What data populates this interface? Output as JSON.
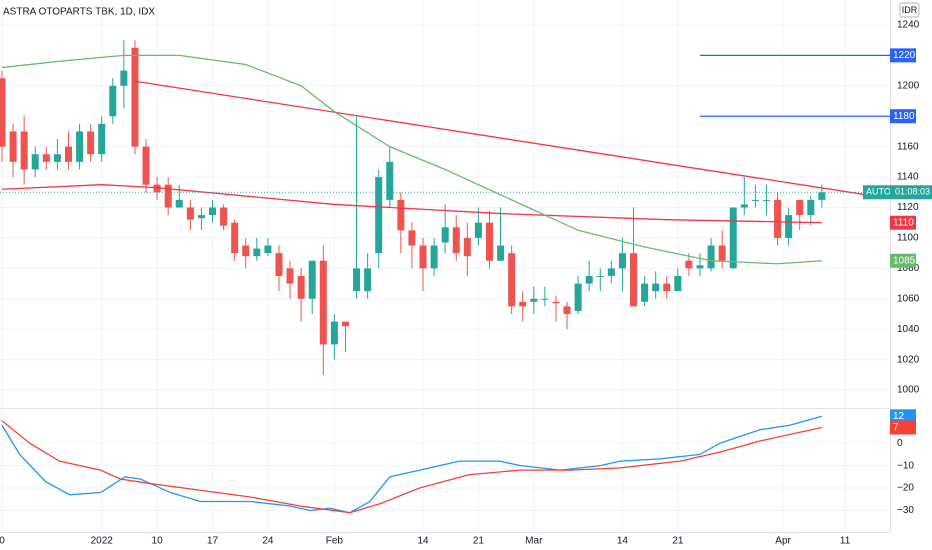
{
  "chart_data": {
    "type": "candlestick",
    "title": "ASTRA OTOPARTS TBK, 1D, IDX",
    "currency": "IDR",
    "up_color": "#26a69a",
    "down_color": "#ef5350",
    "open": [
      1205,
      1170,
      1170,
      1145,
      1155,
      1150,
      1160,
      1150,
      1170,
      1155,
      1180,
      1200,
      1225,
      1160,
      1135,
      1135,
      1120,
      1120,
      1113,
      1115,
      1120,
      1110,
      1095,
      1088,
      1090,
      1090,
      1080,
      1075,
      1060,
      1085,
      1030,
      1045,
      1065,
      1065,
      1090,
      1125,
      1125,
      1105,
      1095,
      1080,
      1097,
      1107,
      1100,
      1100,
      1110,
      1085,
      1090,
      1058,
      1058,
      1060,
      1058,
      1055,
      1052,
      1070,
      1075,
      1075,
      1080,
      1090,
      1058,
      1065,
      1070,
      1065,
      1085,
      1080,
      1080,
      1095,
      1080,
      1120,
      1125,
      1125,
      1125,
      1100,
      1125,
      1115,
      1125
    ],
    "high": [
      1210,
      1175,
      1180,
      1160,
      1160,
      1165,
      1170,
      1175,
      1175,
      1180,
      1205,
      1230,
      1230,
      1165,
      1140,
      1140,
      1135,
      1125,
      1120,
      1125,
      1122,
      1112,
      1100,
      1100,
      1100,
      1095,
      1085,
      1080,
      1085,
      1095,
      1050,
      1045,
      1180,
      1090,
      1145,
      1160,
      1130,
      1110,
      1100,
      1100,
      1122,
      1115,
      1110,
      1120,
      1118,
      1120,
      1095,
      1065,
      1068,
      1068,
      1062,
      1058,
      1075,
      1085,
      1080,
      1085,
      1100,
      1120,
      1075,
      1078,
      1075,
      1080,
      1090,
      1090,
      1100,
      1105,
      1120,
      1140,
      1135,
      1135,
      1130,
      1120,
      1125,
      1128,
      1135
    ],
    "low": [
      1150,
      1140,
      1135,
      1140,
      1145,
      1145,
      1145,
      1145,
      1150,
      1150,
      1175,
      1185,
      1155,
      1130,
      1125,
      1115,
      1120,
      1105,
      1105,
      1110,
      1105,
      1085,
      1080,
      1085,
      1088,
      1065,
      1060,
      1045,
      1050,
      1010,
      1020,
      1025,
      1060,
      1060,
      1080,
      1120,
      1090,
      1080,
      1065,
      1075,
      1090,
      1085,
      1075,
      1095,
      1080,
      1085,
      1050,
      1045,
      1050,
      1055,
      1045,
      1040,
      1050,
      1065,
      1065,
      1070,
      1065,
      1055,
      1055,
      1060,
      1060,
      1065,
      1075,
      1075,
      1078,
      1080,
      1080,
      1115,
      1120,
      1115,
      1095,
      1095,
      1105,
      1108,
      1120
    ],
    "close": [
      1160,
      1150,
      1145,
      1155,
      1150,
      1155,
      1150,
      1170,
      1155,
      1175,
      1200,
      1210,
      1160,
      1135,
      1130,
      1120,
      1125,
      1112,
      1115,
      1120,
      1108,
      1090,
      1088,
      1093,
      1095,
      1075,
      1070,
      1060,
      1085,
      1030,
      1045,
      1042,
      1080,
      1080,
      1140,
      1150,
      1105,
      1095,
      1080,
      1095,
      1107,
      1090,
      1088,
      1110,
      1085,
      1095,
      1055,
      1055,
      1060,
      1060,
      1057,
      1050,
      1070,
      1075,
      1075,
      1080,
      1090,
      1055,
      1070,
      1070,
      1065,
      1075,
      1080,
      1082,
      1095,
      1085,
      1120,
      1122,
      1125,
      1125,
      1100,
      1115,
      1115,
      1125,
      1130
    ],
    "xlim": [
      -0.18,
      80.15
    ],
    "xticks": [
      {
        "value": 0,
        "label": "0"
      },
      {
        "value": 9,
        "label": "2022"
      },
      {
        "value": 14,
        "label": "10"
      },
      {
        "value": 19,
        "label": "17"
      },
      {
        "value": 24,
        "label": "24"
      },
      {
        "value": 30,
        "label": "Feb"
      },
      {
        "value": 38,
        "label": "14"
      },
      {
        "value": 43,
        "label": "21"
      },
      {
        "value": 48,
        "label": "Mar"
      },
      {
        "value": 56,
        "label": "14"
      },
      {
        "value": 61,
        "label": "21"
      },
      {
        "value": 70.5,
        "label": "Apr"
      },
      {
        "value": 76.1,
        "label": "11"
      }
    ],
    "ylim": [
      988.2,
      1256.4
    ],
    "yticks": [
      1000,
      1020,
      1040,
      1060,
      1080,
      1100,
      1120,
      1140,
      1160,
      1200,
      1240
    ],
    "last_price": {
      "label": "AUTO",
      "countdown": "01:08:03",
      "color": "#26a69a"
    },
    "lines": [
      {
        "color": "#f23645",
        "x": [
          12,
          78.3
        ],
        "values": [
          1203,
          1128
        ]
      },
      {
        "color": "#f23645",
        "x": [
          0,
          9,
          14,
          30,
          45,
          60,
          74
        ],
        "values": [
          1132,
          1135,
          1133,
          1122,
          1116,
          1112,
          1110
        ]
      },
      {
        "color": "#66bb6a",
        "x": [
          0,
          5,
          11,
          16,
          22,
          27,
          30,
          35,
          40,
          46,
          52,
          58,
          64,
          70,
          74
        ],
        "values": [
          1212,
          1216,
          1220,
          1220,
          1214,
          1200,
          1183,
          1160,
          1145,
          1125,
          1105,
          1094,
          1085,
          1083,
          1085
        ]
      }
    ],
    "levels": [
      {
        "value": 1220,
        "color": "#2962ff",
        "from": 63
      },
      {
        "value": 1180,
        "color": "#2962ff",
        "from": 63
      }
    ],
    "oscillator": {
      "ylim": [
        -39.6,
        15.7
      ],
      "yticks": [
        0,
        {
          "value": -10,
          "label": "−10"
        },
        {
          "value": -20,
          "label": "−20"
        },
        {
          "value": -30,
          "label": "−30"
        }
      ],
      "series": [
        {
          "color": "#2196f3",
          "x": [
            0,
            1.6,
            3.9,
            6.1,
            8.9,
            11.1,
            12.5,
            15.2,
            17.9,
            22.4,
            26,
            27.8,
            29.6,
            31.4,
            33.2,
            35,
            37.7,
            41.3,
            44.9,
            46.8,
            50.4,
            54,
            55.8,
            59.4,
            63,
            64.8,
            68.4,
            71.1,
            74
          ],
          "values": [
            8,
            -5,
            -17,
            -23,
            -22,
            -15,
            -16,
            -22,
            -26,
            -26,
            -28,
            -30,
            -29,
            -31,
            -26,
            -15,
            -12,
            -8,
            -8,
            -10,
            -12,
            -10,
            -8,
            -7,
            -5,
            0,
            6,
            8,
            12
          ]
        },
        {
          "color": "#f44336",
          "x": [
            0,
            2.5,
            5.2,
            8.9,
            10.7,
            13.4,
            17.9,
            22.4,
            26.9,
            31.4,
            34.1,
            37.7,
            42.2,
            46.8,
            51.3,
            55.8,
            61.2,
            64.8,
            68.4,
            74
          ],
          "values": [
            10,
            0,
            -8,
            -12,
            -16,
            -18,
            -21,
            -24,
            -28,
            -31,
            -27,
            -20,
            -14,
            -12,
            -12,
            -11,
            -8,
            -4,
            1,
            7
          ]
        }
      ]
    }
  }
}
